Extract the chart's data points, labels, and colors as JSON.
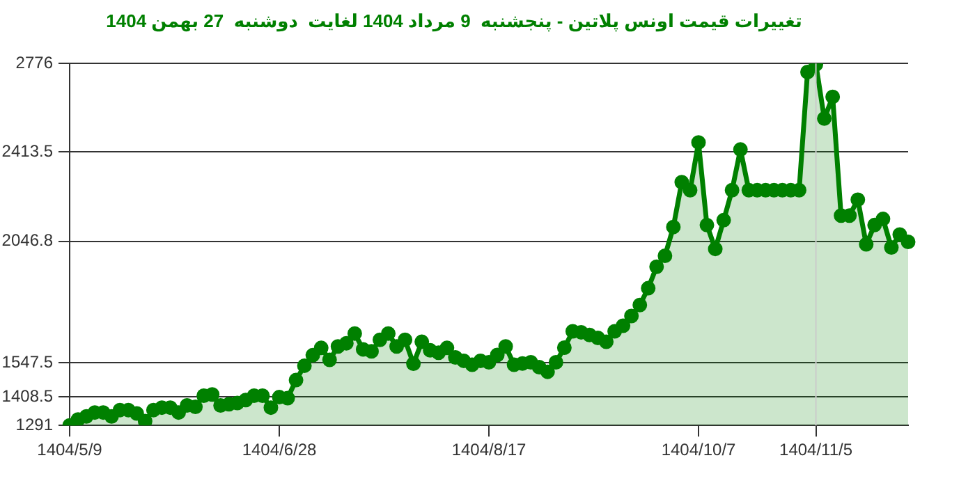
{
  "chart_data": {
    "type": "area",
    "title": "تغییرات قیمت اونس پلاتین - پنجشنبه  9 مرداد 1404 لغایت  دوشنبه  27 بهمن 1404",
    "categories": [
      "1404/5/9",
      null,
      null,
      null,
      null,
      null,
      null,
      null,
      null,
      null,
      null,
      null,
      null,
      null,
      null,
      null,
      null,
      null,
      null,
      null,
      null,
      null,
      null,
      null,
      null,
      "1404/6/28",
      null,
      null,
      null,
      null,
      null,
      null,
      null,
      null,
      null,
      null,
      null,
      null,
      null,
      null,
      null,
      null,
      null,
      null,
      null,
      null,
      null,
      null,
      null,
      null,
      "1404/8/17",
      null,
      null,
      null,
      null,
      null,
      null,
      null,
      null,
      null,
      null,
      null,
      null,
      null,
      null,
      null,
      null,
      null,
      null,
      null,
      null,
      null,
      null,
      null,
      null,
      "1404/10/7",
      null,
      null,
      null,
      null,
      null,
      null,
      null,
      null,
      null,
      null,
      null,
      null,
      null,
      "1404/11/5",
      null,
      null,
      null,
      null,
      null,
      null,
      null,
      null,
      null,
      null,
      null
    ],
    "series": [
      {
        "color": "#008000",
        "values": [
          1291,
          1315,
          1328,
          1344,
          1344,
          1328,
          1354,
          1354,
          1340,
          1309,
          1354,
          1364,
          1364,
          1344,
          1373,
          1367,
          1413,
          1418,
          1373,
          1378,
          1383,
          1395,
          1413,
          1413,
          1364,
          1407,
          1403,
          1477,
          1536,
          1579,
          1609,
          1560,
          1615,
          1628,
          1668,
          1603,
          1595,
          1642,
          1668,
          1615,
          1642,
          1544,
          1634,
          1599,
          1589,
          1609,
          1570,
          1556,
          1540,
          1556,
          1550,
          1580,
          1615,
          1540,
          1545,
          1550,
          1530,
          1511,
          1550,
          1610,
          1677,
          1673,
          1662,
          1650,
          1634,
          1677,
          1700,
          1740,
          1785,
          1854,
          1942,
          1987,
          2105,
          2289,
          2256,
          2452,
          2113,
          2015,
          2133,
          2256,
          2423,
          2256,
          2256,
          2256,
          2256,
          2256,
          2256,
          2256,
          2741,
          2772,
          2550,
          2639,
          2152,
          2152,
          2217,
          2034,
          2113,
          2138,
          2021,
          2074,
          2044
        ]
      }
    ],
    "ylim": [
      1291,
      2776
    ],
    "yticks": [
      1291,
      1408.5,
      1547.5,
      2046.8,
      2413.5,
      2776
    ],
    "ref_lines": [
      {
        "axis": "x",
        "value": "1404/11/5",
        "color": "#cccccc"
      }
    ],
    "grid": "y",
    "legend": false,
    "marker": "circle",
    "line_style": "solid"
  }
}
